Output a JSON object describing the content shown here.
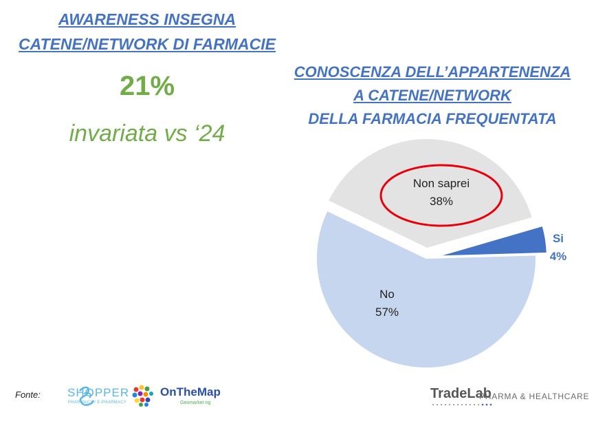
{
  "left": {
    "title_line1": "AWARENESS INSEGNA",
    "title_line2": "CATENE/NETWORK DI FARMACIE",
    "value": "21%",
    "trend": "invariata vs ‘24"
  },
  "right_title": {
    "line1": "CONOSCENZA DELL’APPARTENENZA",
    "line2": "A CATENE/NETWORK",
    "line3": "DELLA FARMACIA FREQUENTATA"
  },
  "chart_data": {
    "type": "pie",
    "slices": [
      {
        "label": "Si",
        "value": 4,
        "value_label": "4%",
        "color": "#4472c4"
      },
      {
        "label": "No",
        "value": 57,
        "value_label": "57%",
        "color": "#c5d6ee"
      },
      {
        "label": "Non saprei",
        "value": 38,
        "value_label": "38%",
        "color": "#e3e3e3",
        "highlighted": true
      }
    ],
    "highlight_color": "#e8000b"
  },
  "footer": {
    "source_label": "Fonte:",
    "shopper_name": "SHOPPER",
    "shopper_sub": "PHARMACY / E-PHARMACY",
    "onthemap_name": "OnTheMap",
    "onthemap_sub": "Geomarket ng",
    "tradelab_name": "TradeLab",
    "tradelab_sub": "PHARMA & HEALTHCARE"
  }
}
